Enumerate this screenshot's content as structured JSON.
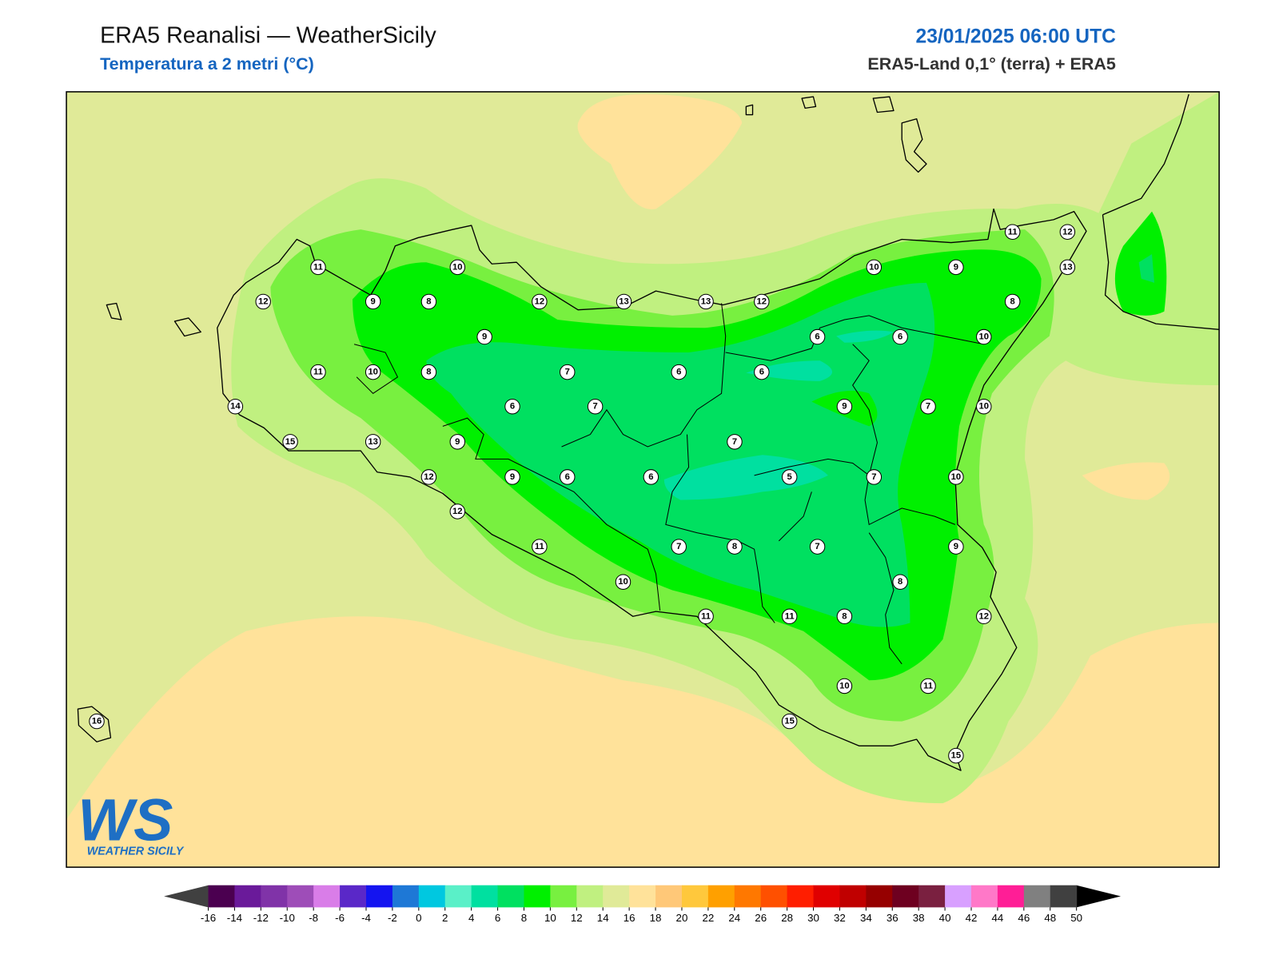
{
  "header": {
    "title": "ERA5 Reanalisi — WeatherSicily",
    "subtitle": "Temperatura a 2 metri (°C)",
    "datetime": "23/01/2025 06:00 UTC",
    "source": "ERA5-Land 0,1° (terra) + ERA5"
  },
  "stations": [
    11,
    10,
    12,
    9,
    8,
    12,
    13,
    13,
    12,
    10,
    9,
    11,
    12,
    13,
    8,
    9,
    6,
    6,
    10,
    11,
    10,
    8,
    7,
    6,
    6,
    14,
    6,
    7,
    9,
    7,
    10,
    15,
    13,
    9,
    7,
    12,
    9,
    6,
    6,
    5,
    7,
    10,
    12,
    11,
    7,
    8,
    7,
    9,
    10,
    8,
    11,
    11,
    8,
    12,
    10,
    11,
    15,
    15,
    16
  ],
  "logo": {
    "mark": "WS",
    "text": "WEATHER SICILY"
  },
  "colorbar": {
    "ticks": [
      -16,
      -14,
      -12,
      -10,
      -8,
      -6,
      -4,
      -2,
      0,
      2,
      4,
      6,
      8,
      10,
      12,
      14,
      16,
      18,
      20,
      22,
      24,
      26,
      28,
      30,
      32,
      34,
      36,
      38,
      40,
      42,
      44,
      46,
      48,
      50
    ],
    "colors": [
      "#4b0050",
      "#6a1a9a",
      "#8033a8",
      "#9e4db8",
      "#d97de8",
      "#5a28c8",
      "#1414f0",
      "#1e78d6",
      "#00c8e0",
      "#5af0c8",
      "#00e0a0",
      "#00e060",
      "#00f000",
      "#78f040",
      "#c0f080",
      "#e0ea98",
      "#ffe29a",
      "#ffc878",
      "#ffc83c",
      "#ffa000",
      "#ff7800",
      "#ff5000",
      "#ff1e00",
      "#e00000",
      "#c00000",
      "#960000",
      "#6e0020",
      "#7a2040",
      "#d8a0ff",
      "#ff78c8",
      "#ff1e96",
      "#808080",
      "#404040"
    ],
    "under_color": "#404040",
    "over_color": "#000000"
  }
}
